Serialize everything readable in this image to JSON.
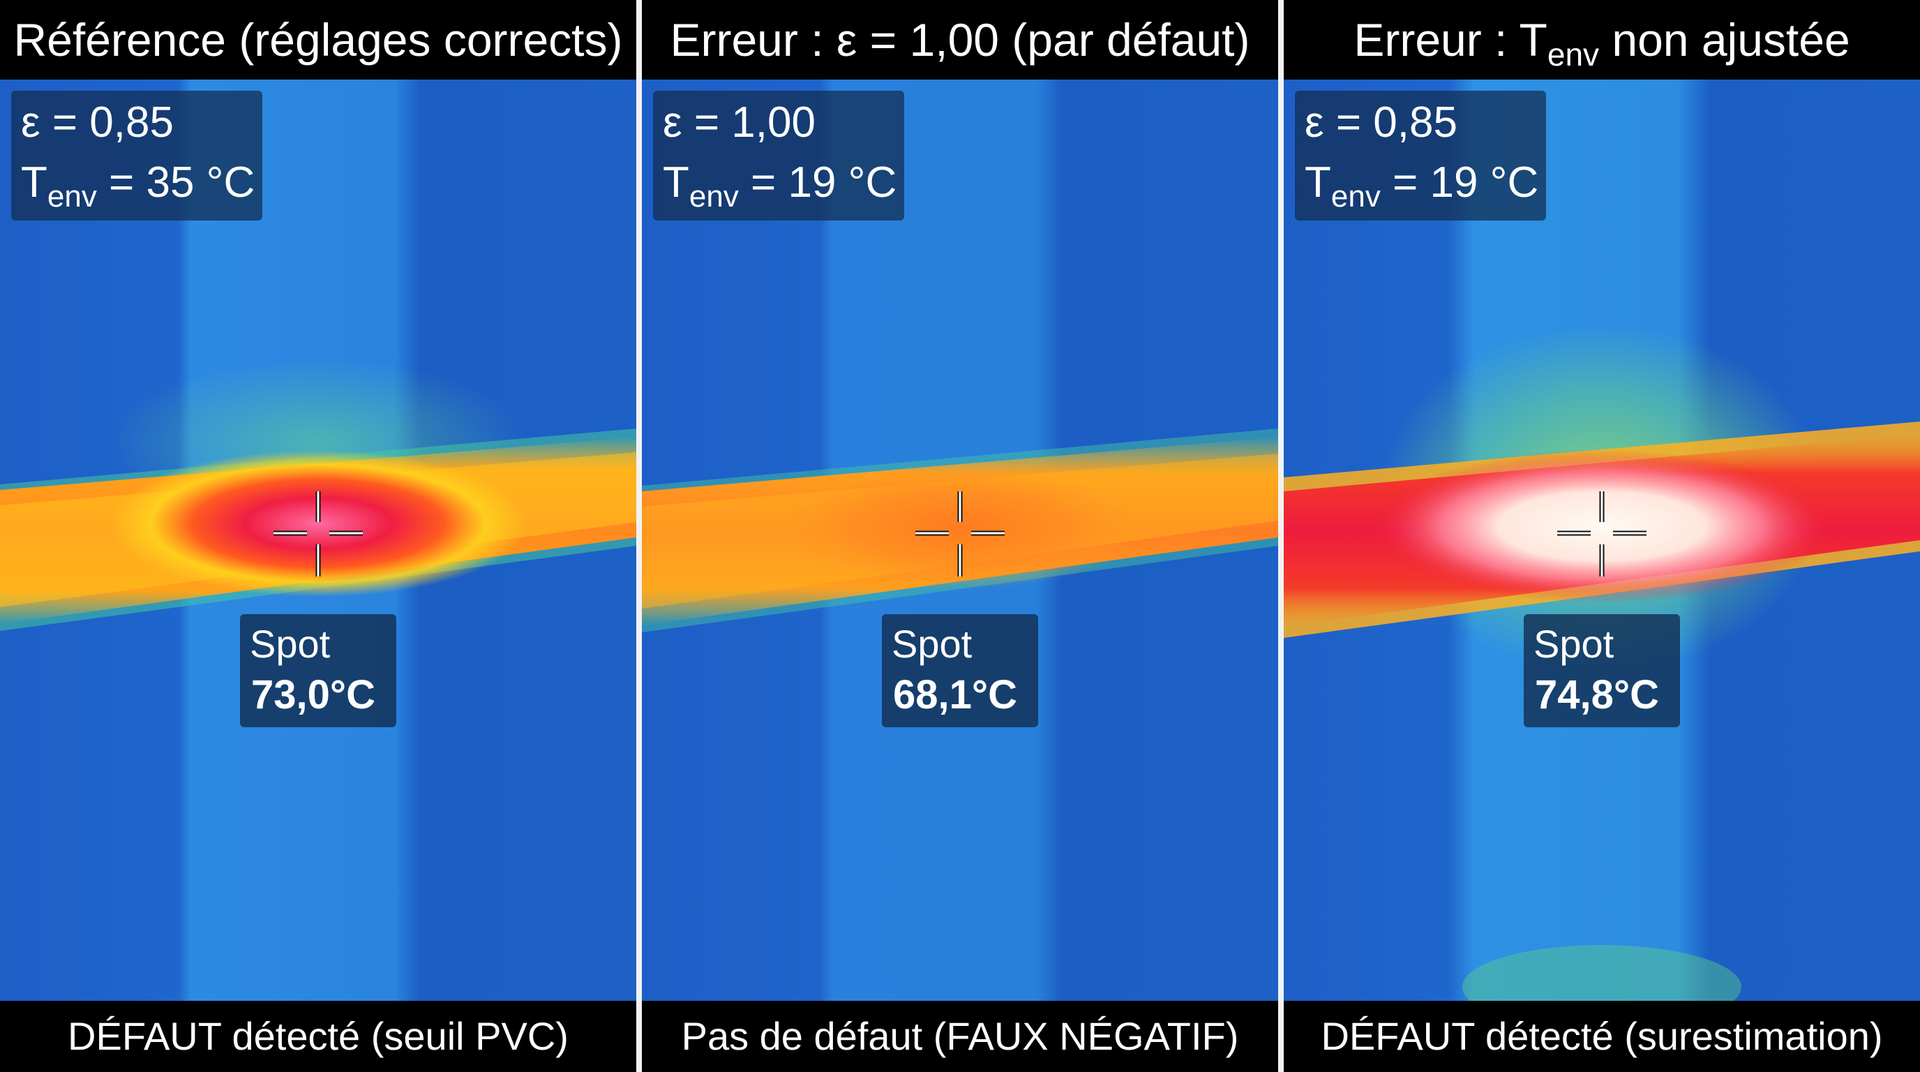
{
  "panels": [
    {
      "title": "Référence (réglages corrects)",
      "emissivity": "ε = 0,85",
      "tenv_symbol": "T",
      "tenv_sub": "env",
      "tenv_value": " = 35 °C",
      "spot_label": "Spot",
      "spot_value": "73,0°C",
      "footer": "DÉFAUT détecté (seuil PVC)"
    },
    {
      "title": "Erreur : ε = 1,00 (par défaut)",
      "emissivity": "ε = 1,00",
      "tenv_symbol": "T",
      "tenv_sub": "env",
      "tenv_value": " = 19 °C",
      "spot_label": "Spot",
      "spot_value": "68,1°C",
      "footer": "Pas de défaut (FAUX NÉGATIF)"
    },
    {
      "title_prefix": "Erreur : T",
      "title_sub": "env",
      "title_suffix": " non ajustée",
      "emissivity": "ε = 0,85",
      "tenv_symbol": "T",
      "tenv_sub": "env",
      "tenv_value": " = 19 °C",
      "spot_label": "Spot",
      "spot_value": "74,8°C",
      "footer": "DÉFAUT détecté (surestimation)"
    }
  ],
  "colors": {
    "background_blue": "#1e63c8",
    "cool_band": "#2a86e0",
    "hot_orange": "#ff8a1e",
    "hot_red": "#ee1c3c",
    "hot_white": "#fff4e8",
    "divider": "#f2f2f2"
  },
  "icons": {
    "crosshair": "crosshair-icon"
  }
}
